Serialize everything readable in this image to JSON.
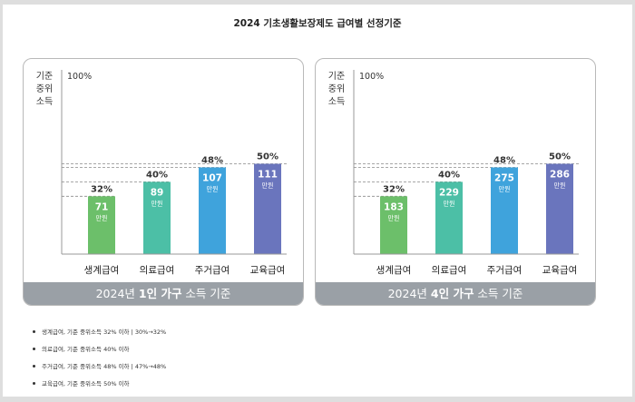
{
  "page": {
    "title": "2024 기초생활보장제도 급여별 선정기준"
  },
  "colors": {
    "frame": "#dedede",
    "panel_border": "#b9b9b9",
    "footer_bg": "#9aa0a6",
    "dashed": "#8a8a8a"
  },
  "chart_data": [
    {
      "type": "bar",
      "ylabel": "기준 중위 소득",
      "ylabel_lines": [
        "기준",
        "중위",
        "소득"
      ],
      "ylim_label": "100%",
      "ylim": [
        0,
        100
      ],
      "categories": [
        "생계급여",
        "의료급여",
        "주거급여",
        "교육급여"
      ],
      "percent_labels": [
        "32%",
        "40%",
        "48%",
        "50%"
      ],
      "values": [
        32,
        40,
        48,
        50
      ],
      "amounts": [
        "71",
        "89",
        "107",
        "111"
      ],
      "unit": "만원",
      "bar_colors": [
        "#6cbf6a",
        "#4cbfa6",
        "#3fa3dc",
        "#6a75bd"
      ],
      "footer": {
        "prefix": "2024년 ",
        "bold": "1인 가구",
        "suffix": " 소득 기준"
      }
    },
    {
      "type": "bar",
      "ylabel": "기준 중위 소득",
      "ylabel_lines": [
        "기준",
        "중위",
        "소득"
      ],
      "ylim_label": "100%",
      "ylim": [
        0,
        100
      ],
      "categories": [
        "생계급여",
        "의료급여",
        "주거급여",
        "교육급여"
      ],
      "percent_labels": [
        "32%",
        "40%",
        "48%",
        "50%"
      ],
      "values": [
        32,
        40,
        48,
        50
      ],
      "amounts": [
        "183",
        "229",
        "275",
        "286"
      ],
      "unit": "만원",
      "bar_colors": [
        "#6cbf6a",
        "#4cbfa6",
        "#3fa3dc",
        "#6a75bd"
      ],
      "footer": {
        "prefix": "2024년 ",
        "bold": "4인 가구",
        "suffix": " 소득 기준"
      }
    }
  ],
  "notes": [
    "생계급여, 기준 중위소득 32% 이하 | 30%→32%",
    "의료급여, 기준 중위소득 40% 이하",
    "주거급여, 기준 중위소득 48% 이하 | 47%→48%",
    "교육급여, 기준 중위소득 50% 이하"
  ]
}
